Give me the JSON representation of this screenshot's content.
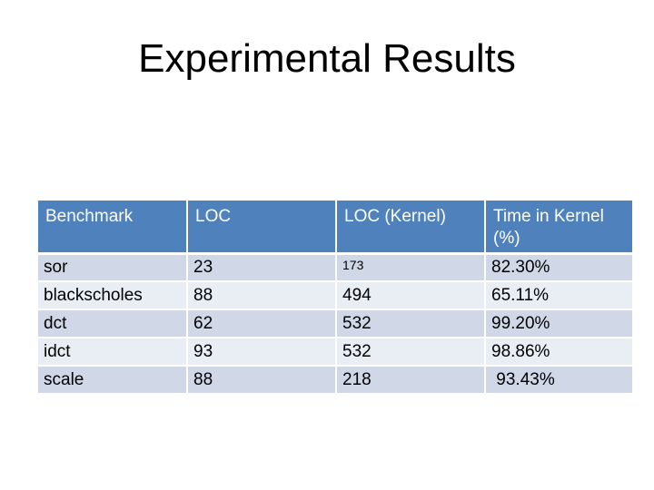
{
  "slide": {
    "title": "Experimental Results"
  },
  "table": {
    "headers": [
      "Benchmark",
      "LOC",
      "LOC (Kernel)",
      "Time in Kernel (%)"
    ],
    "rows": [
      [
        "sor",
        "23",
        "173",
        "82.30%"
      ],
      [
        "blackscholes",
        "88",
        "494",
        "65.11%"
      ],
      [
        "dct",
        "62",
        "532",
        "99.20%"
      ],
      [
        "idct",
        "93",
        "532",
        "98.86%"
      ],
      [
        "scale",
        "88",
        "218",
        " 93.43%"
      ]
    ]
  },
  "colors": {
    "header_bg": "#4f81bd",
    "row_odd_bg": "#d0d8e8",
    "row_even_bg": "#e9edf4"
  }
}
